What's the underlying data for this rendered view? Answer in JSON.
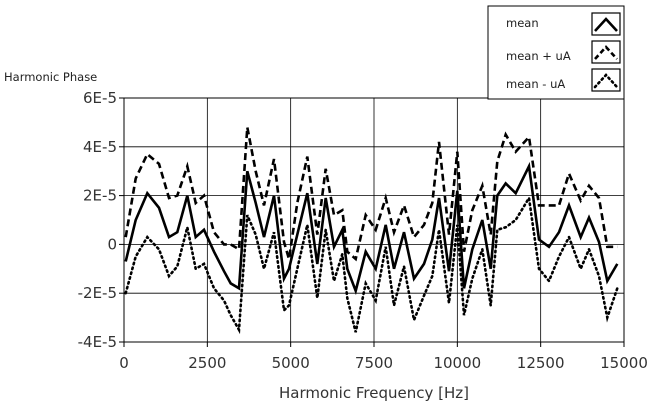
{
  "chart_data": {
    "type": "line",
    "title": "",
    "ylabel": "Harmonic Phase",
    "xlabel": "Harmonic Frequency [Hz]",
    "xlim": [
      0,
      15000
    ],
    "ylim": [
      -4e-05,
      6e-05
    ],
    "x_ticks": [
      0,
      2500,
      5000,
      7500,
      10000,
      12500,
      15000
    ],
    "x_tick_labels": [
      "0",
      "2500",
      "5000",
      "7500",
      "10000",
      "12500",
      "15000"
    ],
    "y_ticks": [
      -4e-05,
      -2e-05,
      0,
      2e-05,
      4e-05,
      6e-05
    ],
    "y_tick_labels": [
      "-4E-5",
      "-2E-5",
      "0",
      "2E-5",
      "4E-5",
      "6E-5"
    ],
    "grid": true,
    "legend_position": "top-right",
    "x": [
      50,
      350,
      700,
      1050,
      1350,
      1600,
      1900,
      2150,
      2400,
      2700,
      3000,
      3200,
      3450,
      3700,
      3950,
      4200,
      4500,
      4800,
      4950,
      5200,
      5500,
      5800,
      6050,
      6300,
      6550,
      6700,
      6950,
      7250,
      7550,
      7850,
      8100,
      8400,
      8700,
      9000,
      9250,
      9450,
      9750,
      10000,
      10200,
      10450,
      10750,
      11000,
      11200,
      11450,
      11750,
      12150,
      12450,
      12750,
      13050,
      13350,
      13700,
      13950,
      14250,
      14500,
      14800
    ],
    "series": [
      {
        "name": "mean",
        "style": "solid",
        "values": [
          -7e-06,
          1e-05,
          2.1e-05,
          1.5e-05,
          3e-06,
          5e-06,
          2e-05,
          3e-06,
          6e-06,
          -3e-06,
          -1.1e-05,
          -1.6e-05,
          -1.8e-05,
          3e-05,
          1.7e-05,
          3e-06,
          2e-05,
          -1.4e-05,
          -1e-05,
          4e-06,
          2.1e-05,
          -8e-06,
          1.9e-05,
          -1e-06,
          6e-06,
          -1e-05,
          -1.9e-05,
          -3e-06,
          -1e-05,
          8e-06,
          -1e-05,
          5e-06,
          -1.4e-05,
          -8e-06,
          2e-06,
          1.9e-05,
          -1.1e-05,
          2.2e-05,
          -1.8e-05,
          -2e-06,
          1e-05,
          -1e-05,
          2e-05,
          2.5e-05,
          2.1e-05,
          3.2e-05,
          2e-06,
          -1e-06,
          5e-06,
          1.6e-05,
          3e-06,
          1.1e-05,
          1e-06,
          -1.5e-05,
          -8e-06
        ]
      },
      {
        "name": "mean + uA",
        "style": "dashed",
        "values": [
          3e-06,
          2.7e-05,
          3.7e-05,
          3.3e-05,
          1.9e-05,
          2e-05,
          3.2e-05,
          1.7e-05,
          2e-05,
          5e-06,
          0,
          0,
          -2e-06,
          4.8e-05,
          3e-05,
          1.6e-05,
          3.5e-05,
          1e-06,
          -6e-06,
          1.7e-05,
          3.6e-05,
          4e-06,
          3.1e-05,
          1.2e-05,
          1.4e-05,
          -3e-06,
          -6e-06,
          1.2e-05,
          6e-06,
          1.9e-05,
          5e-06,
          1.6e-05,
          3e-06,
          8e-06,
          1.7e-05,
          4.2e-05,
          4e-06,
          3.8e-05,
          -3e-06,
          1.4e-05,
          2.4e-05,
          4e-06,
          3.4e-05,
          4.5e-05,
          3.8e-05,
          4.4e-05,
          1.6e-05,
          1.6e-05,
          1.6e-05,
          2.9e-05,
          1.8e-05,
          2.4e-05,
          1.9e-05,
          -1e-06,
          -1e-06
        ]
      },
      {
        "name": "mean - uA",
        "style": "dotted",
        "values": [
          -2e-05,
          -5e-06,
          3e-06,
          -2e-06,
          -1.3e-05,
          -9e-06,
          7e-06,
          -1e-05,
          -8e-06,
          -1.8e-05,
          -2.3e-05,
          -2.9e-05,
          -3.5e-05,
          1.2e-05,
          4e-06,
          -1e-05,
          5e-06,
          -2.7e-05,
          -2.5e-05,
          -1e-05,
          8e-06,
          -2.2e-05,
          6e-06,
          -1.5e-05,
          -4e-06,
          -2.2e-05,
          -3.6e-05,
          -1.6e-05,
          -2.3e-05,
          -1e-06,
          -2.5e-05,
          -9e-06,
          -3.1e-05,
          -2.1e-05,
          -1.3e-05,
          6e-06,
          -2.4e-05,
          8e-06,
          -2.9e-05,
          -1.4e-05,
          -2e-06,
          -2.5e-05,
          6e-06,
          7e-06,
          1e-05,
          1.9e-05,
          -1e-05,
          -1.5e-05,
          -5e-06,
          3e-06,
          -1e-05,
          -2e-06,
          -1.3e-05,
          -3e-05,
          -1.8e-05
        ]
      }
    ]
  }
}
